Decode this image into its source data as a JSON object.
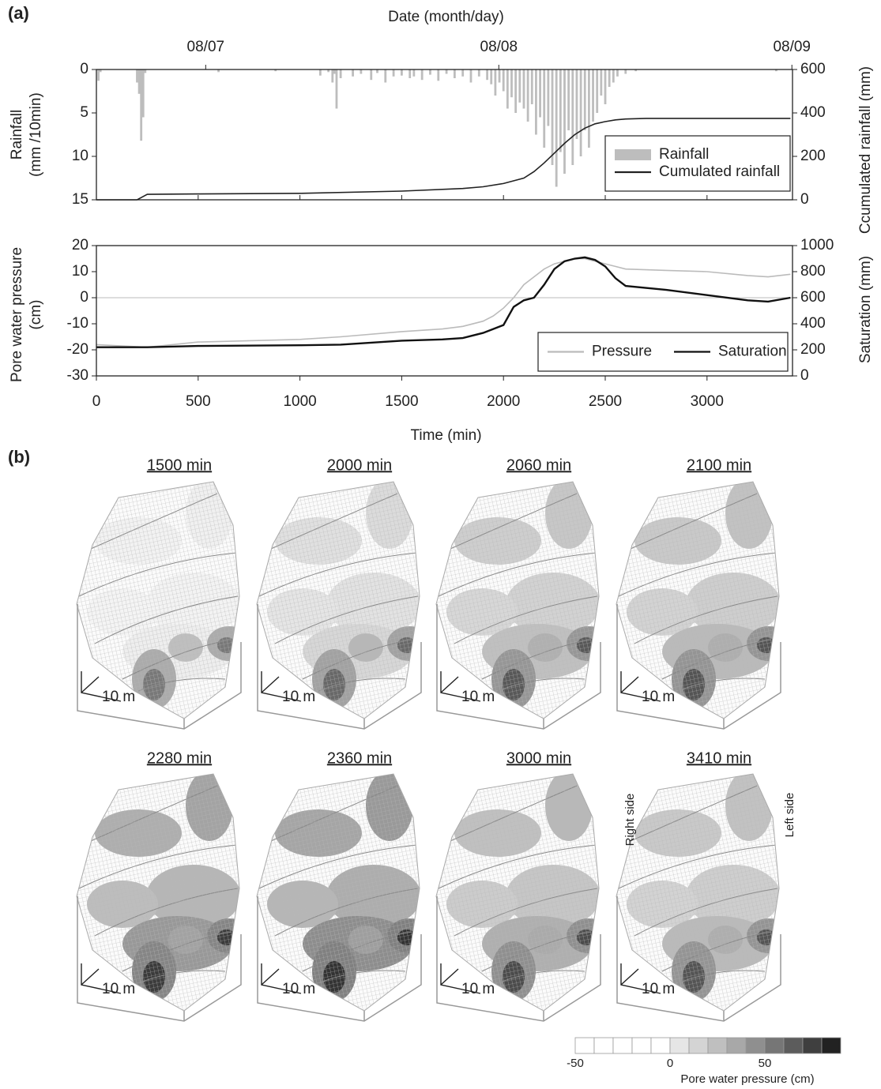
{
  "panel_labels": [
    "(a)",
    "(b)"
  ],
  "chart_data": [
    {
      "type": "bar",
      "x2label": "Date (month/day)",
      "x2ticks": [
        {
          "value": 537,
          "label": "08/07"
        },
        {
          "value": 1977,
          "label": "08/08"
        },
        {
          "value": 3417,
          "label": "08/09"
        }
      ],
      "ylabel": [
        "Rainfall",
        "(mm /10min)"
      ],
      "y2label": "Ccumulated rainfall (mm)",
      "xlim": [
        0,
        3420
      ],
      "ylim": [
        0,
        15
      ],
      "y_inverted": true,
      "yticks": [
        0,
        5,
        10,
        15
      ],
      "y2lim": [
        0,
        600
      ],
      "y2ticks": [
        0,
        200,
        400,
        600
      ],
      "legend": "lower right",
      "series": [
        {
          "name": "Rainfall",
          "type": "bar",
          "color": "#bdbdbd",
          "x": [
            10,
            20,
            200,
            210,
            220,
            230,
            240,
            600,
            880,
            1100,
            1140,
            1160,
            1170,
            1180,
            1200,
            1260,
            1300,
            1350,
            1380,
            1420,
            1460,
            1500,
            1540,
            1560,
            1600,
            1640,
            1680,
            1720,
            1760,
            1800,
            1840,
            1880,
            1920,
            1940,
            1960,
            1980,
            2000,
            2020,
            2040,
            2060,
            2080,
            2100,
            2120,
            2140,
            2160,
            2180,
            2200,
            2220,
            2240,
            2260,
            2280,
            2300,
            2320,
            2340,
            2360,
            2380,
            2400,
            2420,
            2440,
            2460,
            2480,
            2500,
            2520,
            2540,
            2560,
            2600,
            2650,
            3340
          ],
          "values": [
            1.3,
            0.3,
            1.5,
            2.8,
            8.2,
            5.5,
            0.4,
            0.3,
            0.2,
            0.7,
            0.3,
            1.5,
            0.5,
            4.5,
            1,
            0.8,
            0.5,
            1.2,
            0.4,
            1.5,
            0.8,
            0.7,
            1,
            0.8,
            1.2,
            0.6,
            1.3,
            0.5,
            1,
            0.8,
            1.5,
            0.8,
            1.2,
            1.7,
            3,
            1.5,
            2.5,
            4.5,
            3.2,
            5,
            3.8,
            4.5,
            6,
            4,
            7.5,
            5.5,
            9,
            6.5,
            11,
            13.5,
            9.5,
            12,
            7,
            11,
            8,
            10,
            7,
            9,
            6,
            5,
            3,
            4,
            2,
            1.5,
            0.8,
            0.5,
            0.2,
            0.2
          ]
        },
        {
          "name": "Cumulated rainfall",
          "type": "line",
          "axis": "y2",
          "color": "#222222",
          "x": [
            0,
            200,
            250,
            500,
            1000,
            1500,
            1800,
            1900,
            2000,
            2100,
            2150,
            2200,
            2250,
            2300,
            2350,
            2400,
            2450,
            2500,
            2550,
            2600,
            2700,
            3000,
            3410
          ],
          "values": [
            0,
            0,
            25,
            27,
            30,
            40,
            52,
            60,
            75,
            100,
            130,
            170,
            215,
            260,
            300,
            330,
            350,
            360,
            368,
            372,
            375,
            375,
            375
          ]
        }
      ]
    },
    {
      "type": "line",
      "xlabel": "Time (min)",
      "ylabel": [
        "Pore water pressure",
        "(cm)"
      ],
      "y2label": "Saturation (mm)",
      "xlim": [
        0,
        3420
      ],
      "xticks": [
        0,
        500,
        1000,
        1500,
        2000,
        2500,
        3000
      ],
      "ylim": [
        -30,
        20
      ],
      "yticks": [
        -30,
        -20,
        -10,
        0,
        10,
        20
      ],
      "y2lim": [
        0,
        1000
      ],
      "y2ticks": [
        0,
        200,
        400,
        600,
        800,
        1000
      ],
      "zero_line": true,
      "legend": "lower right",
      "series": [
        {
          "name": "Pressure",
          "color": "#bbbbbb",
          "x": [
            0,
            250,
            500,
            1000,
            1200,
            1500,
            1700,
            1800,
            1900,
            1950,
            2000,
            2050,
            2100,
            2150,
            2200,
            2250,
            2300,
            2350,
            2400,
            2450,
            2500,
            2550,
            2600,
            2800,
            3000,
            3200,
            3300,
            3410
          ],
          "values": [
            -18,
            -19,
            -17,
            -16,
            -15,
            -13,
            -12,
            -11,
            -9,
            -7,
            -4,
            0,
            5,
            8,
            11,
            13,
            14,
            15,
            15,
            14,
            13,
            12,
            11,
            10.5,
            10,
            8.5,
            8,
            9
          ]
        },
        {
          "name": "Saturation",
          "axis": "y2",
          "color": "#111111",
          "x": [
            0,
            250,
            500,
            1000,
            1200,
            1500,
            1700,
            1800,
            1900,
            1950,
            2000,
            2050,
            2100,
            2150,
            2200,
            2250,
            2300,
            2350,
            2400,
            2450,
            2500,
            2550,
            2600,
            2800,
            3000,
            3200,
            3300,
            3410
          ],
          "values": [
            220,
            220,
            230,
            235,
            240,
            270,
            280,
            290,
            330,
            360,
            390,
            530,
            580,
            600,
            700,
            820,
            880,
            900,
            910,
            890,
            840,
            750,
            690,
            660,
            620,
            580,
            570,
            600
          ]
        }
      ]
    }
  ],
  "maps": [
    {
      "title": "1500 min",
      "scale": "10 m"
    },
    {
      "title": "2000 min",
      "scale": "10 m"
    },
    {
      "title": "2060 min",
      "scale": "10 m"
    },
    {
      "title": "2100 min",
      "scale": "10 m"
    },
    {
      "title": "2280 min",
      "scale": "10 m"
    },
    {
      "title": "2360 min",
      "scale": "10 m"
    },
    {
      "title": "3000 min",
      "scale": "10 m"
    },
    {
      "title": "3410 min",
      "scale": "10 m",
      "side_labels": [
        "Right side",
        "Left side"
      ]
    }
  ],
  "colorbar": {
    "label": "Pore water pressure (cm)",
    "lim": [
      -50,
      90
    ],
    "ticks": [
      -50,
      0,
      50
    ],
    "colors": [
      "#ffffff",
      "#ffffff",
      "#ffffff",
      "#ffffff",
      "#ffffff",
      "#e6e6e6",
      "#d4d4d4",
      "#bfbfbf",
      "#a8a8a8",
      "#8f8f8f",
      "#767676",
      "#5c5c5c",
      "#3f3f3f",
      "#222222"
    ]
  }
}
